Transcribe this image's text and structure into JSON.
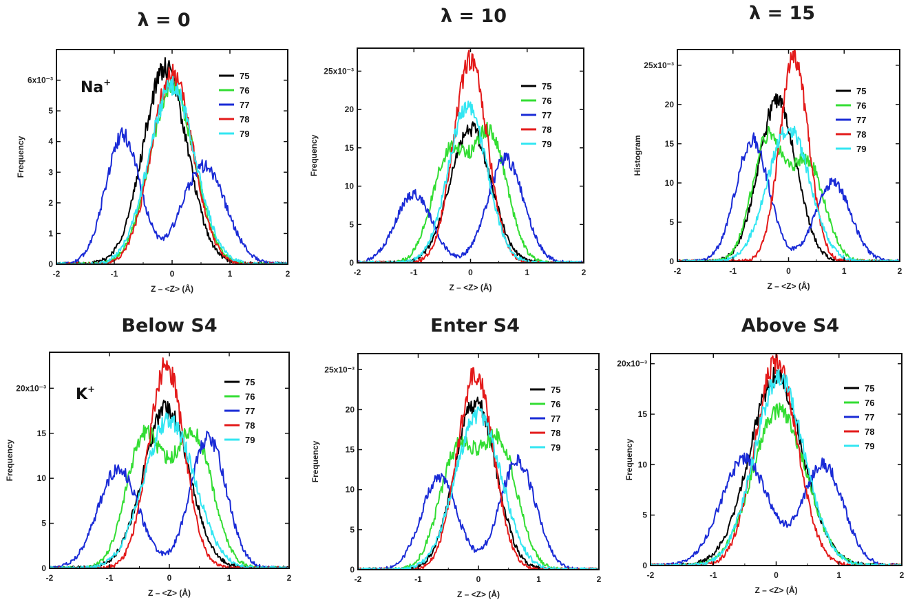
{
  "figure": {
    "titles": [
      "λ = 0",
      "λ = 10",
      "λ = 15",
      "Below S4",
      "Enter S4",
      "Above S4"
    ]
  },
  "chart_data": [
    {
      "type": "line",
      "title": "λ = 0",
      "xlabel": "Z – <Z> (Å)",
      "ylabel": "Frequency",
      "xlim": [
        -2,
        2
      ],
      "ylim": [
        0,
        7.0
      ],
      "yticks": [
        0,
        1,
        2,
        3,
        4,
        5,
        6
      ],
      "ytick_labels": [
        "0",
        "1",
        "2",
        "3",
        "4",
        "5",
        "6x10⁻³"
      ],
      "xticks": [
        -2,
        -1,
        0,
        1,
        2
      ],
      "annotation": "Na+",
      "legend_position": "top-right",
      "series": [
        {
          "name": "75",
          "color": "#000000",
          "shape": "single",
          "peaks": [
            [
              -0.12,
              6.3,
              0.38
            ]
          ],
          "tail": 0.03
        },
        {
          "name": "76",
          "color": "#33dd33",
          "shape": "single",
          "peaks": [
            [
              0.0,
              5.8,
              0.38
            ]
          ]
        },
        {
          "name": "77",
          "color": "#1a2bd6",
          "shape": "double",
          "peaks": [
            [
              -0.85,
              4.2,
              0.3
            ],
            [
              0.55,
              3.2,
              0.38
            ]
          ]
        },
        {
          "name": "78",
          "color": "#e31a1a",
          "shape": "single",
          "peaks": [
            [
              0.0,
              6.2,
              0.36
            ]
          ]
        },
        {
          "name": "79",
          "color": "#33e6f2",
          "shape": "single",
          "peaks": [
            [
              0.0,
              5.8,
              0.4
            ]
          ]
        }
      ]
    },
    {
      "type": "line",
      "title": "λ = 10",
      "xlabel": "Z – <Z> (Å)",
      "ylabel": "Frequency",
      "xlim": [
        -2,
        2
      ],
      "ylim": [
        0,
        28
      ],
      "yticks": [
        0,
        5,
        10,
        15,
        20,
        25
      ],
      "ytick_labels": [
        "0",
        "5",
        "10",
        "15",
        "20",
        "25x10⁻³"
      ],
      "xticks": [
        -2,
        -1,
        0,
        1,
        2
      ],
      "legend_position": "top-right",
      "series": [
        {
          "name": "75",
          "color": "#000000",
          "shape": "single",
          "peaks": [
            [
              0.0,
              17.5,
              0.36
            ]
          ]
        },
        {
          "name": "76",
          "color": "#33dd33",
          "shape": "double",
          "peaks": [
            [
              -0.38,
              14.0,
              0.3
            ],
            [
              0.35,
              16.5,
              0.3
            ]
          ]
        },
        {
          "name": "77",
          "color": "#1a2bd6",
          "shape": "double",
          "peaks": [
            [
              -1.0,
              9.0,
              0.32
            ],
            [
              0.62,
              13.5,
              0.32
            ]
          ]
        },
        {
          "name": "78",
          "color": "#e31a1a",
          "shape": "single",
          "peaks": [
            [
              0.0,
              26.5,
              0.3
            ]
          ]
        },
        {
          "name": "79",
          "color": "#33e6f2",
          "shape": "single",
          "peaks": [
            [
              -0.05,
              20.5,
              0.34
            ]
          ]
        }
      ]
    },
    {
      "type": "line",
      "title": "λ = 15",
      "xlabel": "Z – <Z> (Å)",
      "ylabel": "Histogram",
      "xlim": [
        -2,
        2
      ],
      "ylim": [
        0,
        27
      ],
      "yticks": [
        0,
        5,
        10,
        15,
        20,
        25
      ],
      "ytick_labels": [
        "0",
        "5",
        "10",
        "15",
        "20",
        "25x10⁻³"
      ],
      "xticks": [
        -2,
        -1,
        0,
        1,
        2
      ],
      "legend_position": "top-right",
      "series": [
        {
          "name": "75",
          "color": "#000000",
          "shape": "single",
          "peaks": [
            [
              -0.2,
              20.5,
              0.34
            ]
          ]
        },
        {
          "name": "76",
          "color": "#33dd33",
          "shape": "double",
          "peaks": [
            [
              -0.38,
              15.5,
              0.28
            ],
            [
              0.35,
              12.5,
              0.3
            ]
          ]
        },
        {
          "name": "77",
          "color": "#1a2bd6",
          "shape": "double",
          "peaks": [
            [
              -0.65,
              15.5,
              0.3
            ],
            [
              0.8,
              10.0,
              0.32
            ]
          ]
        },
        {
          "name": "78",
          "color": "#e31a1a",
          "shape": "single",
          "peaks": [
            [
              0.1,
              26.0,
              0.26
            ]
          ]
        },
        {
          "name": "79",
          "color": "#33e6f2",
          "shape": "single",
          "peaks": [
            [
              0.0,
              17.0,
              0.38
            ]
          ]
        }
      ]
    },
    {
      "type": "line",
      "title": "Below S4",
      "xlabel": "Z – <Z> (Å)",
      "ylabel": "Frequency",
      "xlim": [
        -2,
        2
      ],
      "ylim": [
        0,
        24
      ],
      "yticks": [
        0,
        5,
        10,
        15,
        20
      ],
      "ytick_labels": [
        "0",
        "5",
        "10",
        "15",
        "20x10⁻³"
      ],
      "xticks": [
        -2,
        -1,
        0,
        1,
        2
      ],
      "annotation": "K+",
      "legend_position": "top-right",
      "series": [
        {
          "name": "75",
          "color": "#000000",
          "shape": "single",
          "peaks": [
            [
              -0.05,
              17.5,
              0.38
            ]
          ],
          "tail": 0.03
        },
        {
          "name": "76",
          "color": "#33dd33",
          "shape": "double",
          "peaks": [
            [
              -0.42,
              14.5,
              0.3
            ],
            [
              0.4,
              15.0,
              0.32
            ]
          ]
        },
        {
          "name": "77",
          "color": "#1a2bd6",
          "shape": "double",
          "peaks": [
            [
              -0.85,
              11.0,
              0.34
            ],
            [
              0.65,
              14.5,
              0.3
            ]
          ]
        },
        {
          "name": "78",
          "color": "#e31a1a",
          "shape": "single",
          "peaks": [
            [
              -0.05,
              22.5,
              0.3
            ]
          ]
        },
        {
          "name": "79",
          "color": "#33e6f2",
          "shape": "single",
          "peaks": [
            [
              0.0,
              16.5,
              0.42
            ]
          ]
        }
      ]
    },
    {
      "type": "line",
      "title": "Enter S4",
      "xlabel": "Z – <Z> (Å)",
      "ylabel": "Frequency",
      "xlim": [
        -2,
        2
      ],
      "ylim": [
        0,
        27
      ],
      "yticks": [
        0,
        5,
        10,
        15,
        20,
        25
      ],
      "ytick_labels": [
        "0",
        "5",
        "10",
        "15",
        "20",
        "25x10⁻³"
      ],
      "xticks": [
        -2,
        -1,
        0,
        1,
        2
      ],
      "legend_position": "top-right",
      "series": [
        {
          "name": "75",
          "color": "#000000",
          "shape": "single",
          "peaks": [
            [
              -0.05,
              21.0,
              0.34
            ]
          ]
        },
        {
          "name": "76",
          "color": "#33dd33",
          "shape": "double",
          "peaks": [
            [
              -0.35,
              14.5,
              0.3
            ],
            [
              0.35,
              15.5,
              0.3
            ]
          ]
        },
        {
          "name": "77",
          "color": "#1a2bd6",
          "shape": "double",
          "peaks": [
            [
              -0.65,
              11.5,
              0.3
            ],
            [
              0.65,
              13.5,
              0.3
            ]
          ]
        },
        {
          "name": "78",
          "color": "#e31a1a",
          "shape": "single",
          "peaks": [
            [
              -0.05,
              24.5,
              0.3
            ]
          ]
        },
        {
          "name": "79",
          "color": "#33e6f2",
          "shape": "single",
          "peaks": [
            [
              0.0,
              19.5,
              0.38
            ]
          ]
        }
      ]
    },
    {
      "type": "line",
      "title": "Above S4",
      "xlabel": "Z – <Z> (Å)",
      "ylabel": "Frequency",
      "xlim": [
        -2,
        2
      ],
      "ylim": [
        0,
        21
      ],
      "yticks": [
        0,
        5,
        10,
        15,
        20
      ],
      "ytick_labels": [
        "0",
        "5",
        "10",
        "15",
        "20x10⁻³"
      ],
      "xticks": [
        -2,
        -1,
        0,
        1,
        2
      ],
      "legend_position": "top-right",
      "series": [
        {
          "name": "75",
          "color": "#000000",
          "shape": "single",
          "peaks": [
            [
              0.0,
              18.5,
              0.42
            ]
          ],
          "tail": 0.03
        },
        {
          "name": "76",
          "color": "#33dd33",
          "shape": "single",
          "peaks": [
            [
              0.05,
              15.5,
              0.42
            ]
          ]
        },
        {
          "name": "77",
          "color": "#1a2bd6",
          "shape": "double",
          "peaks": [
            [
              -0.5,
              10.5,
              0.38
            ],
            [
              0.75,
              10.0,
              0.32
            ]
          ]
        },
        {
          "name": "78",
          "color": "#e31a1a",
          "shape": "single",
          "peaks": [
            [
              0.0,
              20.0,
              0.34
            ]
          ]
        },
        {
          "name": "79",
          "color": "#33e6f2",
          "shape": "single",
          "peaks": [
            [
              0.05,
              18.5,
              0.4
            ]
          ]
        }
      ]
    }
  ]
}
